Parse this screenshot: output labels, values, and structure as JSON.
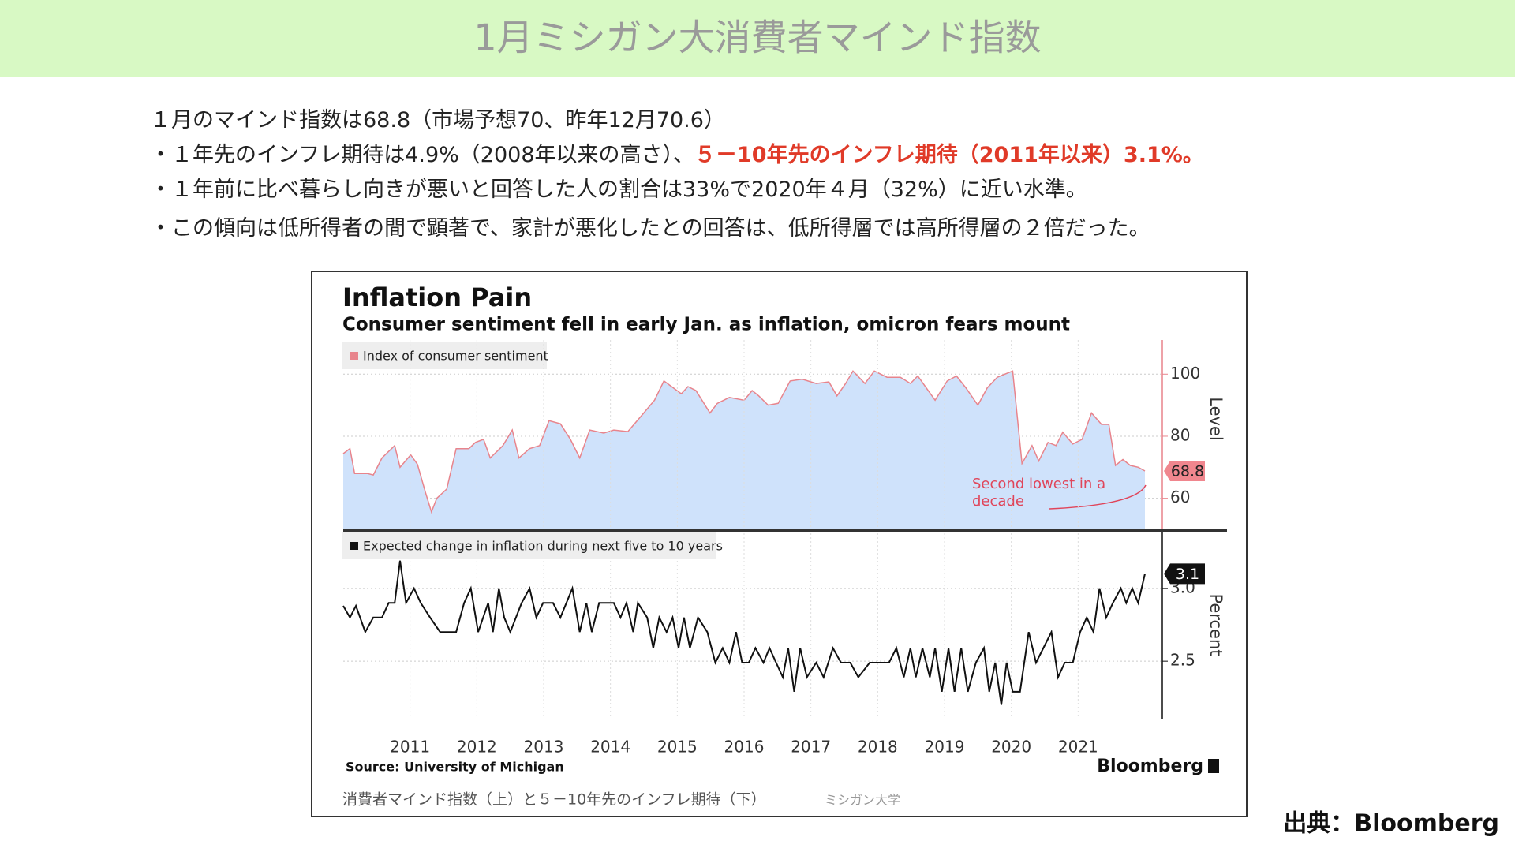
{
  "title": "1月ミシガン大消費者マインド指数",
  "header_color": "#d8f9c4",
  "bullets": [
    [
      {
        "text": "１月のマインド指数は68.8（市場予想70、昨年12月70.6）"
      }
    ],
    [
      {
        "text": "・１年先のインフレ期待は4.9%（2008年以来の高さ）、"
      },
      {
        "text": "５－10年先のインフレ期待（2011年以来）3.1%。",
        "color": "#e03a28"
      }
    ],
    [
      {
        "text": "・１年前に比べ暮らし向きが悪いと回答した人の割合は33%で2020年４月（32%）に近い水準。"
      }
    ],
    [
      {
        "text": "・この傾向は低所得者の間で顕著で、家計が悪化したとの回答は、低所得層では高所得層の２倍だった。"
      }
    ]
  ],
  "chart_data": [
    {
      "type": "area",
      "title": "Inflation Pain",
      "subtitle": "Consumer sentiment fell in early Jan. as inflation, omicron fears mount",
      "ylabel": "Level",
      "annotation": "Second lowest in a decade",
      "x": [
        2010.0,
        2010.1,
        2010.17,
        2010.36,
        2010.45,
        2010.58,
        2010.77,
        2010.85,
        2011.01,
        2011.11,
        2011.23,
        2011.32,
        2011.4,
        2011.55,
        2011.69,
        2011.88,
        2011.98,
        2012.1,
        2012.2,
        2012.39,
        2012.53,
        2012.63,
        2012.79,
        2012.94,
        2013.08,
        2013.25,
        2013.4,
        2013.54,
        2013.69,
        2013.9,
        2014.05,
        2014.26,
        2014.48,
        2014.66,
        2014.8,
        2014.94,
        2015.06,
        2015.16,
        2015.28,
        2015.49,
        2015.6,
        2015.78,
        2016.0,
        2016.12,
        2016.22,
        2016.36,
        2016.51,
        2016.69,
        2016.87,
        2017.08,
        2017.27,
        2017.39,
        2017.52,
        2017.63,
        2017.81,
        2017.95,
        2018.14,
        2018.34,
        2018.49,
        2018.6,
        2018.86,
        2019.04,
        2019.18,
        2019.32,
        2019.5,
        2019.64,
        2019.79,
        2020.02,
        2020.16,
        2020.31,
        2020.41,
        2020.55,
        2020.67,
        2020.77,
        2020.92,
        2021.06,
        2021.2,
        2021.35,
        2021.46,
        2021.56,
        2021.67,
        2021.78,
        2021.9,
        2022.0
      ],
      "series": [
        {
          "name": "Index of consumer sentiment",
          "color": "#e8848c",
          "fill": "#cfe2fb",
          "values": [
            74.4,
            76,
            68,
            68,
            67.5,
            73,
            77,
            70,
            74,
            71,
            62,
            55.6,
            60,
            63,
            76,
            76,
            78,
            79,
            73,
            77,
            82,
            73,
            76,
            77,
            85,
            84,
            79,
            73,
            82,
            81,
            82,
            81.5,
            87,
            91.6,
            97.8,
            95.6,
            93.7,
            96,
            94.7,
            87.5,
            90.6,
            92.5,
            91.6,
            94.7,
            93,
            90,
            90.6,
            97.8,
            98.4,
            97,
            97.5,
            93,
            97,
            101,
            97,
            101,
            99,
            99,
            97,
            99.4,
            91.6,
            97.8,
            99.4,
            95.6,
            90,
            95.6,
            99,
            101,
            71.2,
            77,
            72,
            78,
            77,
            81.3,
            77.5,
            79,
            87.5,
            83.8,
            83.8,
            70.6,
            72.5,
            70.6,
            70,
            68.8
          ]
        }
      ],
      "xlim": [
        2010,
        2022
      ],
      "ylim": [
        50,
        111
      ],
      "yticks": [
        60,
        80,
        100
      ],
      "grid": true
    },
    {
      "type": "line",
      "ylabel": "Percent",
      "x": [
        2010.0,
        2010.1,
        2010.19,
        2010.33,
        2010.45,
        2010.58,
        2010.68,
        2010.77,
        2010.85,
        2010.94,
        2011.06,
        2011.16,
        2011.3,
        2011.45,
        2011.69,
        2011.81,
        2011.91,
        2012.02,
        2012.17,
        2012.24,
        2012.33,
        2012.41,
        2012.5,
        2012.67,
        2012.79,
        2012.89,
        2012.99,
        2013.14,
        2013.25,
        2013.43,
        2013.54,
        2013.64,
        2013.72,
        2013.83,
        2014.05,
        2014.15,
        2014.24,
        2014.34,
        2014.41,
        2014.55,
        2014.64,
        2014.73,
        2014.84,
        2014.93,
        2015.02,
        2015.1,
        2015.19,
        2015.31,
        2015.45,
        2015.57,
        2015.68,
        2015.78,
        2015.88,
        2015.97,
        2016.07,
        2016.17,
        2016.29,
        2016.38,
        2016.48,
        2016.58,
        2016.66,
        2016.75,
        2016.84,
        2016.94,
        2017.08,
        2017.19,
        2017.33,
        2017.45,
        2017.59,
        2017.71,
        2017.88,
        2018.17,
        2018.28,
        2018.39,
        2018.49,
        2018.57,
        2018.67,
        2018.78,
        2018.86,
        2018.96,
        2019.06,
        2019.15,
        2019.25,
        2019.35,
        2019.47,
        2019.59,
        2019.67,
        2019.76,
        2019.85,
        2019.93,
        2020.02,
        2020.13,
        2020.26,
        2020.37,
        2020.48,
        2020.6,
        2020.7,
        2020.8,
        2020.92,
        2021.03,
        2021.13,
        2021.23,
        2021.32,
        2021.42,
        2021.52,
        2021.64,
        2021.72,
        2021.81,
        2021.9,
        2022.0
      ],
      "series": [
        {
          "name": "Expected change in inflation during next five to 10 years",
          "color": "#111111",
          "values": [
            2.88,
            2.8,
            2.88,
            2.7,
            2.8,
            2.8,
            2.9,
            2.9,
            3.19,
            2.9,
            3.0,
            2.9,
            2.8,
            2.7,
            2.7,
            2.9,
            3.0,
            2.7,
            2.9,
            2.7,
            3.0,
            2.8,
            2.7,
            2.9,
            3.0,
            2.8,
            2.9,
            2.9,
            2.8,
            3.0,
            2.7,
            2.9,
            2.7,
            2.9,
            2.9,
            2.8,
            2.9,
            2.7,
            2.9,
            2.8,
            2.59,
            2.8,
            2.7,
            2.8,
            2.59,
            2.8,
            2.59,
            2.8,
            2.7,
            2.49,
            2.59,
            2.49,
            2.7,
            2.49,
            2.49,
            2.59,
            2.49,
            2.59,
            2.49,
            2.39,
            2.59,
            2.29,
            2.59,
            2.39,
            2.49,
            2.39,
            2.59,
            2.49,
            2.49,
            2.39,
            2.49,
            2.49,
            2.59,
            2.39,
            2.59,
            2.39,
            2.59,
            2.39,
            2.59,
            2.29,
            2.59,
            2.29,
            2.59,
            2.29,
            2.49,
            2.59,
            2.29,
            2.49,
            2.2,
            2.49,
            2.29,
            2.29,
            2.7,
            2.49,
            2.59,
            2.7,
            2.39,
            2.49,
            2.49,
            2.7,
            2.8,
            2.7,
            3.0,
            2.8,
            2.9,
            3.0,
            2.9,
            3.0,
            2.9,
            3.1
          ]
        }
      ],
      "xlim": [
        2010,
        2022
      ],
      "ylim": [
        2.1,
        3.4
      ],
      "yticks": [
        2.5,
        {
          "value": 3,
          "label": "3.0"
        }
      ],
      "xticks": [
        2011,
        2012,
        2013,
        2014,
        2015,
        2016,
        2017,
        2018,
        2019,
        2020,
        2021
      ],
      "grid": true
    }
  ],
  "source": "Source: University of Michigan",
  "logo": "Bloomberg",
  "caption": "消費者マインド指数（上）と５－10年先のインフレ期待（下）",
  "caption_source": "ミシガン大学",
  "credit": "出典：Bloomberg"
}
